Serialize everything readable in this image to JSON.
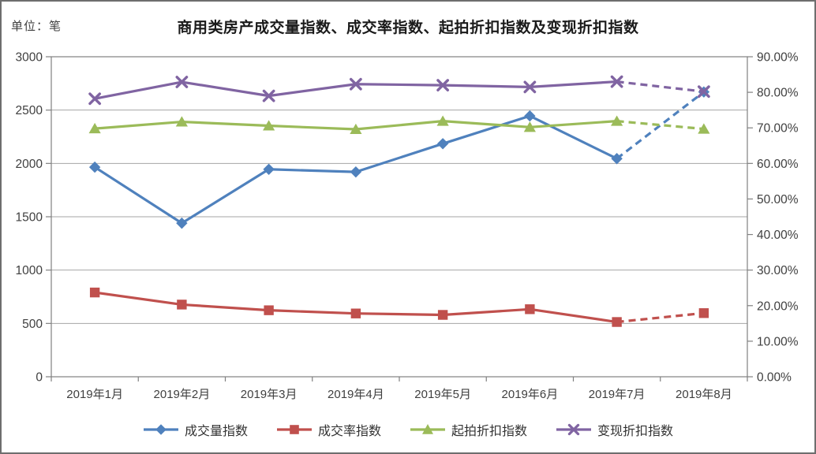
{
  "chart_data": {
    "type": "line",
    "title": "商用类房产成交量指数、成交率指数、起拍折扣指数及变现折扣指数",
    "unit_label": "单位：笔",
    "categories": [
      "2019年1月",
      "2019年2月",
      "2019年3月",
      "2019年4月",
      "2019年5月",
      "2019年6月",
      "2019年7月",
      "2019年8月"
    ],
    "left_axis": {
      "min": 0,
      "max": 3000,
      "step": 500,
      "ticks": [
        "3000",
        "2500",
        "2000",
        "1500",
        "1000",
        "500",
        "0"
      ]
    },
    "right_axis": {
      "min": 0,
      "max": 90,
      "step": 10,
      "ticks": [
        "90.00%",
        "80.00%",
        "70.00%",
        "60.00%",
        "50.00%",
        "40.00%",
        "30.00%",
        "20.00%",
        "10.00%",
        "0.00%"
      ]
    },
    "grid": "horizontal-left-axis-steps",
    "legend_position": "bottom",
    "dashed_note": "last segment (2019年7月→2019年8月) drawn dashed for every series",
    "series": [
      {
        "name": "成交量指数",
        "axis": "left",
        "color": "#4F81BD",
        "marker": "diamond",
        "dashed_from": 6,
        "values": [
          1965,
          1440,
          1945,
          1920,
          2185,
          2445,
          2045,
          2670
        ]
      },
      {
        "name": "成交率指数",
        "axis": "right",
        "color": "#C0504D",
        "marker": "square",
        "dashed_from": 6,
        "values": [
          23.7,
          20.3,
          18.7,
          17.8,
          17.4,
          19.0,
          15.4,
          17.9
        ]
      },
      {
        "name": "起拍折扣指数",
        "axis": "right",
        "color": "#9BBB59",
        "marker": "triangle",
        "dashed_from": 6,
        "values": [
          69.8,
          71.7,
          70.6,
          69.6,
          71.9,
          70.2,
          71.9,
          69.7
        ]
      },
      {
        "name": "变现折扣指数",
        "axis": "right",
        "color": "#8064A2",
        "marker": "x",
        "dashed_from": 6,
        "values": [
          78.2,
          82.9,
          79.0,
          82.3,
          82.0,
          81.5,
          83.0,
          80.2
        ]
      }
    ],
    "colors": {
      "gridline": "#a6a6a6",
      "axis": "#808080",
      "tick_text": "#3f3f3f"
    }
  }
}
